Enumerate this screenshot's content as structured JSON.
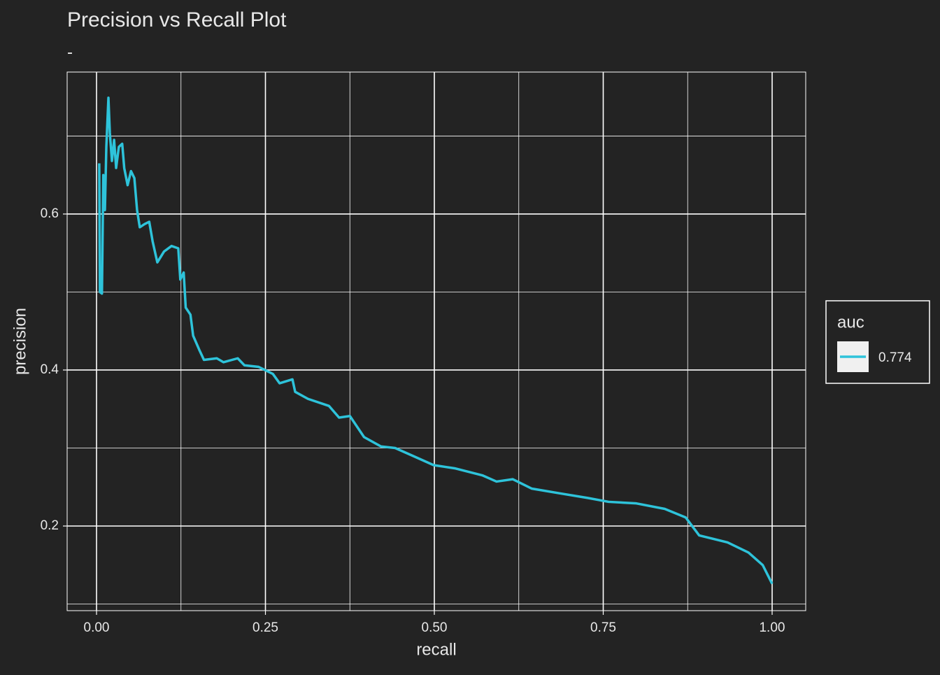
{
  "chart_data": {
    "type": "line",
    "title": "Precision vs Recall Plot",
    "subtitle": "-",
    "x_label": "recall",
    "y_label": "precision",
    "legend_title": "auc",
    "legend_position": "right",
    "grid": true,
    "xlim": [
      -0.0435,
      1.0497
    ],
    "ylim": [
      0.0915,
      0.782
    ],
    "xticks": [
      {
        "value": 0,
        "label": "0.00"
      },
      {
        "value": 0.25,
        "label": "0.25"
      },
      {
        "value": 0.5,
        "label": "0.50"
      },
      {
        "value": 0.75,
        "label": "0.75"
      },
      {
        "value": 1,
        "label": "1.00"
      }
    ],
    "yticks": [
      0.2,
      0.4,
      0.6
    ],
    "x_minor_ticks": [
      0.125,
      0.375,
      0.625,
      0.875
    ],
    "y_minor_ticks": [
      0.1,
      0.3,
      0.5,
      0.7
    ],
    "x": [
      0.004,
      0.005,
      0.008,
      0.01,
      0.0124,
      0.0145,
      0.0176,
      0.0197,
      0.0228,
      0.026,
      0.029,
      0.033,
      0.038,
      0.041,
      0.046,
      0.051,
      0.056,
      0.06,
      0.064,
      0.071,
      0.078,
      0.083,
      0.09,
      0.1,
      0.111,
      0.121,
      0.124,
      0.129,
      0.132,
      0.139,
      0.143,
      0.152,
      0.159,
      0.178,
      0.188,
      0.209,
      0.219,
      0.24,
      0.261,
      0.271,
      0.29,
      0.294,
      0.313,
      0.344,
      0.359,
      0.375,
      0.396,
      0.421,
      0.442,
      0.468,
      0.499,
      0.53,
      0.571,
      0.592,
      0.616,
      0.644,
      0.685,
      0.727,
      0.758,
      0.799,
      0.841,
      0.872,
      0.892,
      0.934,
      0.965,
      0.986,
      1.0
    ],
    "series": [
      {
        "name": "0.774",
        "color": "#2ec3da",
        "values": [
          0.665,
          0.5,
          0.498,
          0.65,
          0.605,
          0.686,
          0.749,
          0.704,
          0.668,
          0.695,
          0.659,
          0.686,
          0.69,
          0.659,
          0.637,
          0.655,
          0.646,
          0.605,
          0.583,
          0.587,
          0.59,
          0.565,
          0.538,
          0.552,
          0.559,
          0.556,
          0.516,
          0.525,
          0.48,
          0.471,
          0.444,
          0.426,
          0.413,
          0.415,
          0.41,
          0.415,
          0.406,
          0.404,
          0.395,
          0.383,
          0.388,
          0.372,
          0.363,
          0.354,
          0.339,
          0.341,
          0.314,
          0.302,
          0.3,
          0.29,
          0.278,
          0.274,
          0.265,
          0.257,
          0.26,
          0.248,
          0.242,
          0.236,
          0.231,
          0.229,
          0.222,
          0.211,
          0.188,
          0.179,
          0.166,
          0.15,
          0.126
        ]
      }
    ]
  }
}
